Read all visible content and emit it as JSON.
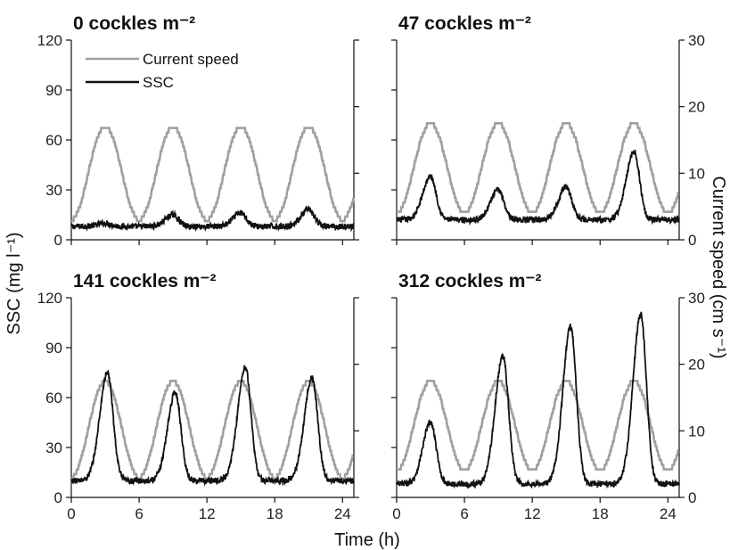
{
  "shared": {
    "ylabel_left": "SSC (mg l⁻¹)",
    "ylabel_right": "Current speed (cm s⁻¹)",
    "xlabel": "Time (h)",
    "x_ticks": [
      "0",
      "6",
      "12",
      "18",
      "24"
    ],
    "ssc_ticks": [
      "0",
      "30",
      "60",
      "90",
      "120"
    ],
    "speed_ticks": [
      "0",
      "10",
      "20",
      "30"
    ],
    "legend": [
      "Current speed",
      "SSC"
    ],
    "colors": {
      "current_speed": "#a0a0a0",
      "ssc": "#111111"
    }
  },
  "chart_data": [
    {
      "type": "line",
      "title": "0 cockles m⁻²",
      "xlim": [
        0,
        25
      ],
      "ylim_ssc": [
        0,
        120
      ],
      "ylim_speed": [
        0,
        30
      ],
      "current_speed": {
        "name": "Current speed",
        "peak": 17,
        "trough": 3,
        "peak_times_h": [
          3,
          9,
          15,
          21
        ]
      },
      "ssc": {
        "name": "SSC",
        "baseline": 8,
        "peaks": [
          [
            3,
            10
          ],
          [
            9,
            15
          ],
          [
            15,
            16
          ],
          [
            21,
            18
          ]
        ]
      }
    },
    {
      "type": "line",
      "title": "47 cockles m⁻²",
      "xlim": [
        0,
        25
      ],
      "ylim_ssc": [
        0,
        120
      ],
      "ylim_speed": [
        0,
        30
      ],
      "current_speed": {
        "name": "Current speed",
        "peak": 17.5,
        "trough": 4,
        "peak_times_h": [
          3,
          9,
          15,
          21
        ]
      },
      "ssc": {
        "name": "SSC",
        "baseline": 12,
        "peaks": [
          [
            3,
            38
          ],
          [
            9,
            30
          ],
          [
            15,
            32
          ],
          [
            21,
            53
          ]
        ]
      }
    },
    {
      "type": "line",
      "title": "141 cockles m⁻²",
      "xlim": [
        0,
        25
      ],
      "ylim_ssc": [
        0,
        120
      ],
      "ylim_speed": [
        0,
        30
      ],
      "current_speed": {
        "name": "Current speed",
        "peak": 17.5,
        "trough": 3,
        "peak_times_h": [
          3,
          9,
          15,
          21
        ]
      },
      "ssc": {
        "name": "SSC",
        "baseline": 10,
        "peaks": [
          [
            3.2,
            75
          ],
          [
            9.2,
            63
          ],
          [
            15.4,
            78
          ],
          [
            21.3,
            72
          ]
        ]
      }
    },
    {
      "type": "line",
      "title": "312 cockles m⁻²",
      "xlim": [
        0,
        25
      ],
      "ylim_ssc": [
        0,
        120
      ],
      "ylim_speed": [
        0,
        30
      ],
      "current_speed": {
        "name": "Current speed",
        "peak": 17.5,
        "trough": 4,
        "peak_times_h": [
          3,
          9,
          15,
          21
        ]
      },
      "ssc": {
        "name": "SSC",
        "baseline": 8,
        "peaks": [
          [
            3,
            45
          ],
          [
            9.4,
            85
          ],
          [
            15.4,
            103
          ],
          [
            21.6,
            110
          ]
        ]
      }
    }
  ]
}
